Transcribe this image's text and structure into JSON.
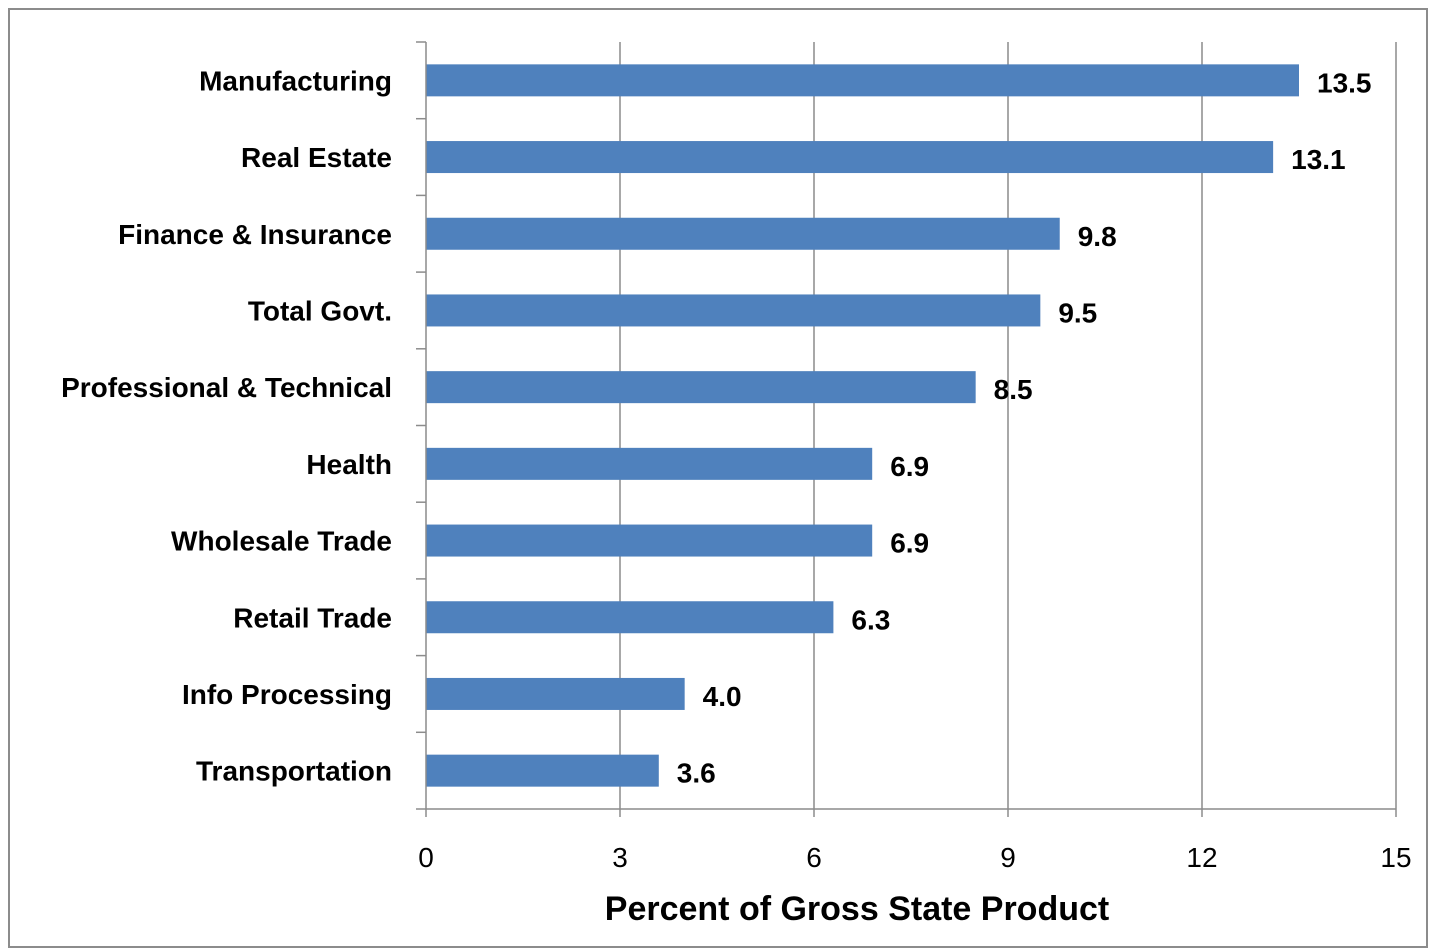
{
  "chart_data": {
    "type": "bar",
    "orientation": "horizontal",
    "categories": [
      "Manufacturing",
      "Real Estate",
      "Finance & Insurance",
      "Total Govt.",
      "Professional & Technical",
      "Health",
      "Wholesale Trade",
      "Retail Trade",
      "Info Processing",
      "Transportation"
    ],
    "values": [
      13.5,
      13.1,
      9.8,
      9.5,
      8.5,
      6.9,
      6.9,
      6.3,
      4.0,
      3.6
    ],
    "value_labels": [
      "13.5",
      "13.1",
      "9.8",
      "9.5",
      "8.5",
      "6.9",
      "6.9",
      "6.3",
      "4.0",
      "3.6"
    ],
    "xlabel": "Percent of Gross State Product",
    "xlim": [
      0,
      15
    ],
    "xticks": [
      0,
      3,
      6,
      9,
      12,
      15
    ],
    "grid": "vertical",
    "bar_color": "#4f81bd",
    "grid_color": "#8c8c8c"
  }
}
